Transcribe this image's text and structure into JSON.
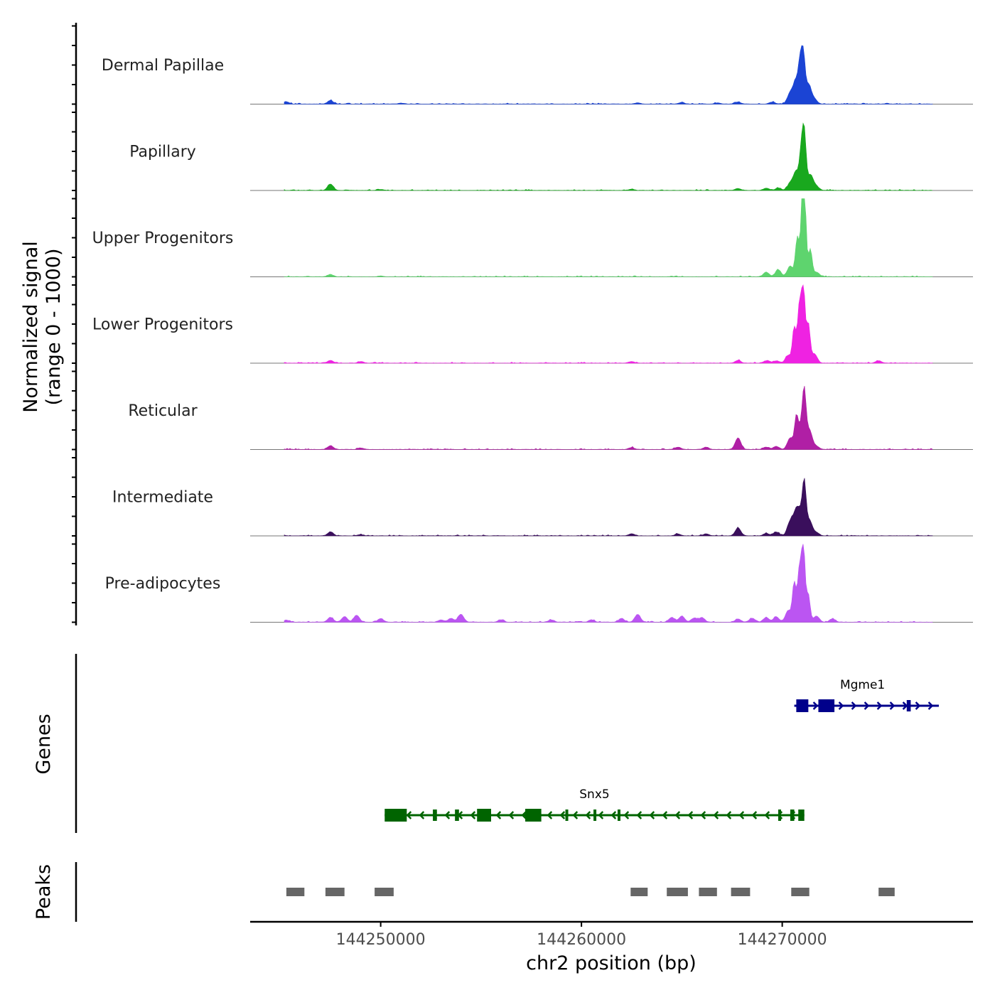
{
  "chart_data": {
    "type": "area",
    "title": "",
    "ylabel_signal": [
      "Normalized signal",
      "(range 0 - 1000)"
    ],
    "ylabel_genes": "Genes",
    "ylabel_peaks": "Peaks",
    "xlabel": "chr2 position (bp)",
    "xlim": [
      144243500,
      144279500
    ],
    "ylim": [
      0,
      1000
    ],
    "x_ticks": [
      144250000,
      144260000,
      144270000
    ],
    "x_tick_labels": [
      "144250000",
      "144260000",
      "144270000"
    ],
    "tracks": [
      {
        "name": "Dermal Papillae",
        "color": "#1b44d4",
        "peaks": [
          [
            144245300,
            30
          ],
          [
            144247500,
            45
          ],
          [
            144251000,
            12
          ],
          [
            144262800,
            15
          ],
          [
            144265000,
            20
          ],
          [
            144266800,
            15
          ],
          [
            144267800,
            25
          ],
          [
            144269500,
            25
          ],
          [
            144270400,
            140
          ],
          [
            144270700,
            300
          ],
          [
            144270900,
            420
          ],
          [
            144271050,
            560
          ],
          [
            144271300,
            250
          ],
          [
            144271600,
            60
          ]
        ]
      },
      {
        "name": "Papillary",
        "color": "#19a81e",
        "peaks": [
          [
            144247500,
            80
          ],
          [
            144250000,
            12
          ],
          [
            144262500,
            15
          ],
          [
            144267800,
            25
          ],
          [
            144269200,
            30
          ],
          [
            144269800,
            30
          ],
          [
            144270400,
            90
          ],
          [
            144270700,
            240
          ],
          [
            144270950,
            450
          ],
          [
            144271100,
            700
          ],
          [
            144271400,
            200
          ],
          [
            144271700,
            50
          ]
        ]
      },
      {
        "name": "Upper Progenitors",
        "color": "#5ed46e",
        "peaks": [
          [
            144247500,
            30
          ],
          [
            144250000,
            10
          ],
          [
            144269200,
            60
          ],
          [
            144269800,
            90
          ],
          [
            144270400,
            140
          ],
          [
            144270750,
            500
          ],
          [
            144271000,
            700
          ],
          [
            144271100,
            1000
          ],
          [
            144271400,
            350
          ],
          [
            144271700,
            60
          ]
        ]
      },
      {
        "name": "Lower Progenitors",
        "color": "#ef22e2",
        "peaks": [
          [
            144245000,
            20
          ],
          [
            144247500,
            35
          ],
          [
            144249000,
            20
          ],
          [
            144262500,
            20
          ],
          [
            144267800,
            35
          ],
          [
            144269200,
            30
          ],
          [
            144269700,
            30
          ],
          [
            144270300,
            100
          ],
          [
            144270600,
            450
          ],
          [
            144270850,
            700
          ],
          [
            144271050,
            1000
          ],
          [
            144271300,
            500
          ],
          [
            144271600,
            120
          ],
          [
            144274800,
            30
          ]
        ]
      },
      {
        "name": "Reticular",
        "color": "#b01fa5",
        "peaks": [
          [
            144245000,
            15
          ],
          [
            144247500,
            50
          ],
          [
            144249000,
            20
          ],
          [
            144262500,
            25
          ],
          [
            144264800,
            30
          ],
          [
            144266200,
            30
          ],
          [
            144267800,
            150
          ],
          [
            144269200,
            30
          ],
          [
            144269700,
            40
          ],
          [
            144270400,
            150
          ],
          [
            144270700,
            380
          ],
          [
            144270950,
            300
          ],
          [
            144271100,
            600
          ],
          [
            144271350,
            250
          ],
          [
            144271700,
            40
          ]
        ]
      },
      {
        "name": "Intermediate",
        "color": "#3a0f5c",
        "peaks": [
          [
            144245000,
            15
          ],
          [
            144247500,
            50
          ],
          [
            144249000,
            15
          ],
          [
            144262500,
            25
          ],
          [
            144264800,
            25
          ],
          [
            144266200,
            25
          ],
          [
            144267800,
            100
          ],
          [
            144269200,
            30
          ],
          [
            144269700,
            50
          ],
          [
            144270400,
            180
          ],
          [
            144270700,
            300
          ],
          [
            144270950,
            250
          ],
          [
            144271100,
            550
          ],
          [
            144271350,
            200
          ],
          [
            144271700,
            40
          ]
        ]
      },
      {
        "name": "Pre-adipocytes",
        "color": "#bb55f2",
        "peaks": [
          [
            144245300,
            25
          ],
          [
            144247500,
            60
          ],
          [
            144248200,
            70
          ],
          [
            144248800,
            90
          ],
          [
            144250000,
            45
          ],
          [
            144253000,
            30
          ],
          [
            144253500,
            50
          ],
          [
            144254000,
            100
          ],
          [
            144256000,
            30
          ],
          [
            144258500,
            30
          ],
          [
            144260500,
            30
          ],
          [
            144262000,
            50
          ],
          [
            144262800,
            100
          ],
          [
            144264500,
            60
          ],
          [
            144265000,
            80
          ],
          [
            144265600,
            50
          ],
          [
            144266000,
            60
          ],
          [
            144267800,
            40
          ],
          [
            144268500,
            50
          ],
          [
            144269200,
            60
          ],
          [
            144269700,
            70
          ],
          [
            144270300,
            150
          ],
          [
            144270600,
            500
          ],
          [
            144270850,
            650
          ],
          [
            144271050,
            1000
          ],
          [
            144271300,
            350
          ],
          [
            144271700,
            80
          ],
          [
            144272500,
            40
          ]
        ]
      }
    ],
    "genes": [
      {
        "name": "Mgme1",
        "color": "#00008b",
        "strand": "+",
        "start": 144270600,
        "end": 144277800,
        "exons": [
          [
            144270700,
            144271300,
            "big"
          ],
          [
            144271800,
            144272600,
            "big"
          ],
          [
            144276200,
            144276400,
            "small"
          ]
        ]
      },
      {
        "name": "Snx5",
        "color": "#006400",
        "strand": "-",
        "start": 144250200,
        "end": 144271100,
        "exons": [
          [
            144250200,
            144251300,
            "big"
          ],
          [
            144252600,
            144252800,
            "small"
          ],
          [
            144253700,
            144253900,
            "small"
          ],
          [
            144254800,
            144255500,
            "big"
          ],
          [
            144257200,
            144258000,
            "big"
          ],
          [
            144259200,
            144259300,
            "small"
          ],
          [
            144260600,
            144260700,
            "small"
          ],
          [
            144261800,
            144261900,
            "small"
          ],
          [
            144269800,
            144269900,
            "small"
          ],
          [
            144270400,
            144270600,
            "small"
          ],
          [
            144270800,
            144271100,
            "small"
          ]
        ]
      }
    ],
    "peak_regions": [
      [
        144245300,
        144246200
      ],
      [
        144247250,
        144248200
      ],
      [
        144249700,
        144250650
      ],
      [
        144262450,
        144263300
      ],
      [
        144264250,
        144265300
      ],
      [
        144265850,
        144266750
      ],
      [
        144267450,
        144268400
      ],
      [
        144270450,
        144271350
      ],
      [
        144274800,
        144275600
      ]
    ]
  }
}
